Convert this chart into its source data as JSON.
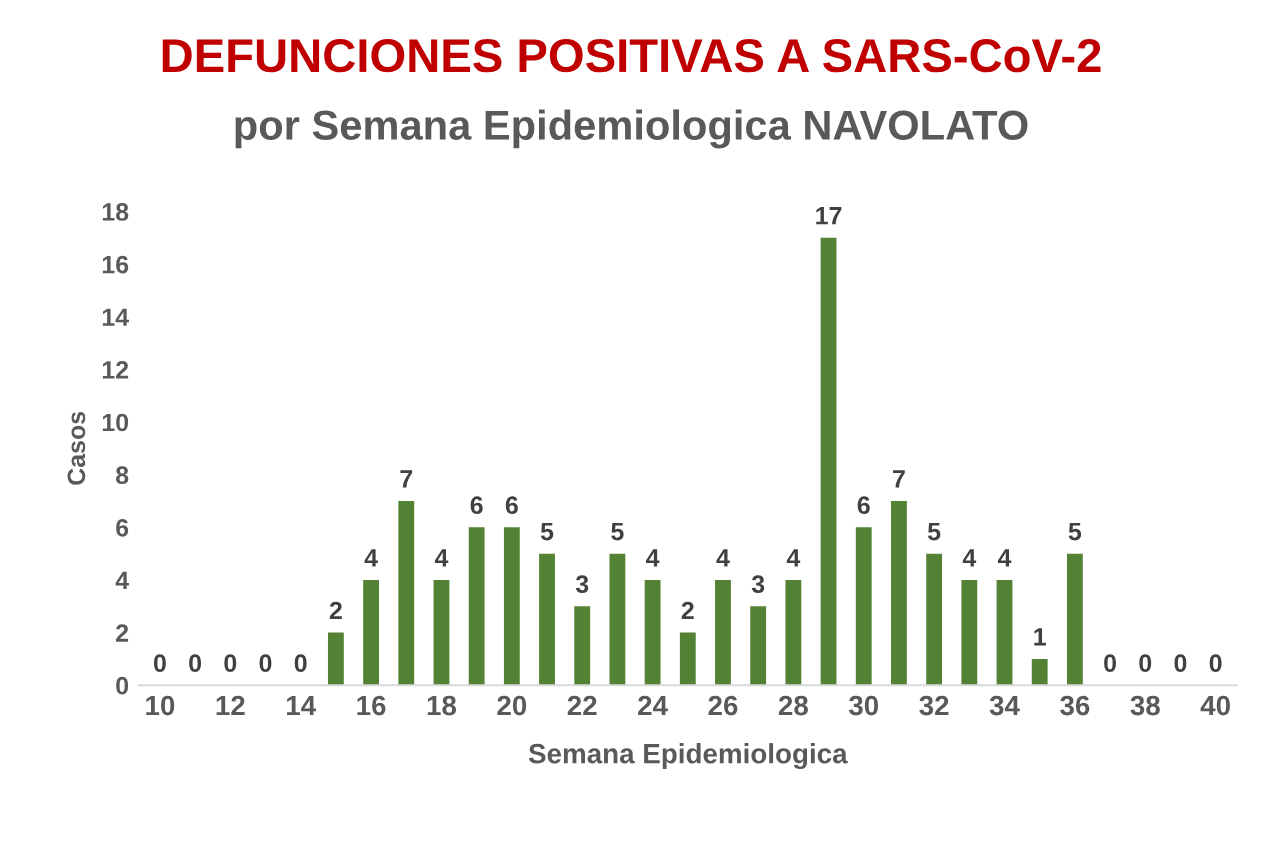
{
  "chart_data": {
    "type": "bar",
    "title": "DEFUNCIONES POSITIVAS A SARS-CoV-2",
    "subtitle": "por Semana Epidemiologica NAVOLATO",
    "xlabel": "Semana Epidemiologica",
    "ylabel": "Casos",
    "categories": [
      "10",
      null,
      "12",
      null,
      "14",
      null,
      "16",
      null,
      "18",
      null,
      "20",
      null,
      "22",
      null,
      "24",
      null,
      "26",
      null,
      "28",
      null,
      "30",
      null,
      "32",
      null,
      "34",
      null,
      "36",
      null,
      "38",
      null,
      "40"
    ],
    "values": [
      0,
      0,
      0,
      0,
      0,
      2,
      4,
      7,
      4,
      6,
      6,
      5,
      3,
      5,
      4,
      2,
      4,
      3,
      4,
      17,
      6,
      7,
      5,
      4,
      4,
      1,
      5,
      0,
      0,
      0,
      0
    ],
    "color": "#548235",
    "ylim": [
      0,
      18
    ],
    "yticks": [
      0,
      2,
      4,
      6,
      8,
      10,
      12,
      14,
      16,
      18
    ],
    "data_labels": true,
    "grid": false,
    "legend": false
  }
}
